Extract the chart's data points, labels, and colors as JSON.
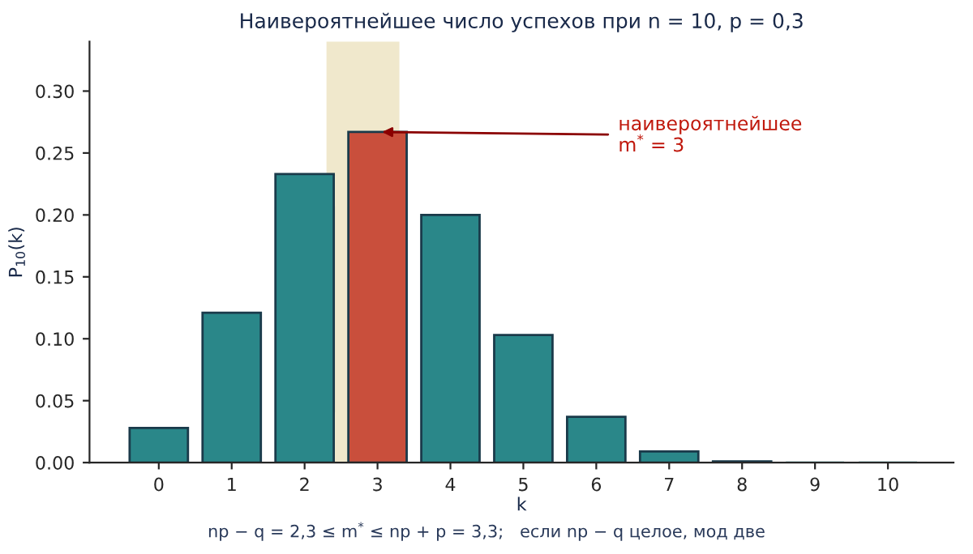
{
  "chart_data": {
    "type": "bar",
    "title": "Наивероятнейшее число успехов при n = 10, p = 0,3",
    "xlabel": "k",
    "ylabel": "P$_{10}$(k)",
    "x": [
      0,
      1,
      2,
      3,
      4,
      5,
      6,
      7,
      8,
      9,
      10
    ],
    "xlim": [
      -0.95,
      10.9
    ],
    "xticks": [
      0,
      1,
      2,
      3,
      4,
      5,
      6,
      7,
      8,
      9,
      10
    ],
    "values": [
      0.028,
      0.121,
      0.233,
      0.267,
      0.2,
      0.103,
      0.037,
      0.009,
      0.001,
      0.0,
      0.0
    ],
    "colors": [
      "#2a8789",
      "#2a8789",
      "#2a8789",
      "#c94f3c",
      "#2a8789",
      "#2a8789",
      "#2a8789",
      "#2a8789",
      "#2a8789",
      "#2a8789",
      "#2a8789"
    ],
    "ylim": [
      0,
      0.34
    ],
    "yticks": [
      {
        "value": 0,
        "label": "0.00"
      },
      {
        "value": 0.05,
        "label": "0.05"
      },
      {
        "value": 0.1,
        "label": "0.10"
      },
      {
        "value": 0.15,
        "label": "0.15"
      },
      {
        "value": 0.2,
        "label": "0.20"
      },
      {
        "value": 0.25,
        "label": "0.25"
      },
      {
        "value": 0.3,
        "label": "0.30"
      }
    ],
    "bands": [
      {
        "axis": "x",
        "from": 2.3,
        "to": 3.3,
        "color": "#f0e8cc"
      }
    ],
    "annotations": [
      {
        "text": "наивероятнейшее\nm$^{*}$ = 3",
        "x": 3,
        "y": 0.267
      },
      "np − q = 2,3 ≤ m$^{*}$ ≤ np + p = 3,3;   если np − q целое, мод две"
    ],
    "grid": false,
    "legend": false
  }
}
